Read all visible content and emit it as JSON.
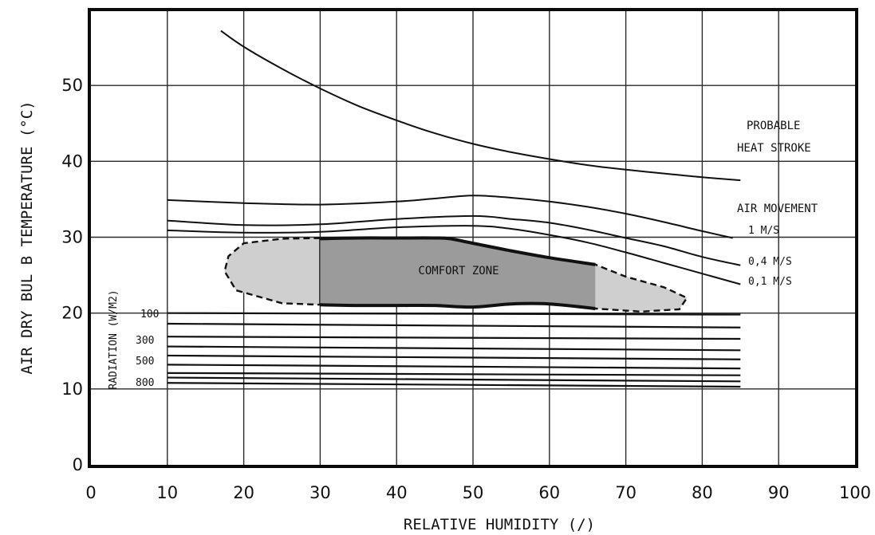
{
  "chart_data": {
    "type": "line",
    "xlabel": "RELATIVE HUMIDITY (/)",
    "ylabel": "AIR DRY BUL B TEMPERATURE (°C)",
    "xlim": [
      0,
      100
    ],
    "ylim": [
      0,
      60
    ],
    "x_ticks": [
      "0",
      "10",
      "20",
      "30",
      "40",
      "50",
      "60",
      "70",
      "80",
      "90",
      "100"
    ],
    "y_ticks": [
      "0",
      "10",
      "20",
      "30",
      "40",
      "50"
    ],
    "grid": true,
    "heat_stroke": {
      "label_line1": "PROBABLE",
      "label_line2": "HEAT STROKE",
      "x": [
        17,
        20,
        25,
        30,
        35,
        40,
        45,
        50,
        55,
        60,
        65,
        70,
        75,
        80,
        85
      ],
      "y": [
        57.2,
        55.1,
        52.2,
        49.6,
        47.3,
        45.4,
        43.7,
        42.3,
        41.2,
        40.3,
        39.5,
        38.9,
        38.4,
        37.9,
        37.5
      ]
    },
    "air_movement": {
      "title": "AIR MOVEMENT",
      "series": [
        {
          "name": "1 M/S",
          "x": [
            10,
            20,
            30,
            40,
            45,
            50,
            55,
            60,
            65,
            70,
            75,
            80,
            84
          ],
          "y": [
            34.9,
            34.5,
            34.3,
            34.7,
            35.1,
            35.5,
            35.2,
            34.7,
            34.0,
            33.1,
            32.0,
            30.8,
            29.9
          ]
        },
        {
          "name": "0,4 M/S",
          "x": [
            10,
            20,
            30,
            40,
            50,
            55,
            60,
            65,
            70,
            75,
            80,
            85
          ],
          "y": [
            32.2,
            31.6,
            31.7,
            32.4,
            32.8,
            32.4,
            31.9,
            31.0,
            29.9,
            28.8,
            27.4,
            26.3
          ]
        },
        {
          "name": "0,1 M/S",
          "x": [
            10,
            20,
            30,
            40,
            50,
            55,
            60,
            65,
            70,
            75,
            80,
            85
          ],
          "y": [
            30.9,
            30.6,
            30.7,
            31.3,
            31.5,
            31.1,
            30.3,
            29.3,
            28.0,
            26.6,
            25.2,
            23.8
          ]
        }
      ]
    },
    "comfort_zone": {
      "label": "COMFORT ZONE",
      "core_x_range": [
        30,
        66
      ],
      "outer_x_range": [
        17,
        78
      ],
      "upper": {
        "x": [
          30,
          35,
          40,
          45,
          47,
          50,
          55,
          60,
          66
        ],
        "y": [
          29.8,
          29.9,
          29.9,
          29.9,
          29.8,
          29.2,
          28.2,
          27.3,
          26.4
        ]
      },
      "lower": {
        "x": [
          30,
          35,
          40,
          45,
          50,
          55,
          60,
          66
        ],
        "y": [
          21.1,
          21.0,
          21.0,
          21.0,
          20.8,
          21.2,
          21.2,
          20.6
        ]
      },
      "outline_left": {
        "x": [
          30,
          25,
          20,
          18,
          17.5,
          19,
          25,
          30
        ],
        "y": [
          29.9,
          29.8,
          29.2,
          27.5,
          25.5,
          23.0,
          21.3,
          21.1
        ]
      },
      "outline_right": {
        "x": [
          66,
          70,
          75,
          78,
          77,
          72,
          66
        ],
        "y": [
          26.4,
          24.8,
          23.4,
          22.0,
          20.5,
          20.2,
          20.6
        ]
      }
    },
    "radiation": {
      "title": "RADIATION (W/M2)",
      "labels": [
        "100",
        "300",
        "500",
        "800"
      ],
      "x_start": 10,
      "x_end": 85,
      "lines": [
        {
          "y_start": 20.0,
          "y_end": 19.8
        },
        {
          "y_start": 18.6,
          "y_end": 18.1
        },
        {
          "y_start": 16.9,
          "y_end": 16.6
        },
        {
          "y_start": 15.6,
          "y_end": 15.1
        },
        {
          "y_start": 14.4,
          "y_end": 13.9
        },
        {
          "y_start": 13.2,
          "y_end": 12.7
        },
        {
          "y_start": 12.1,
          "y_end": 11.8
        },
        {
          "y_start": 11.5,
          "y_end": 11.0
        },
        {
          "y_start": 10.8,
          "y_end": 10.3
        }
      ]
    },
    "colors": {
      "line": "#111111",
      "comfort_core": "#9b9b9b",
      "comfort_outer": "#cfcfcf",
      "grid": "#2a2a2a",
      "frame": "#0a0a0a"
    }
  }
}
